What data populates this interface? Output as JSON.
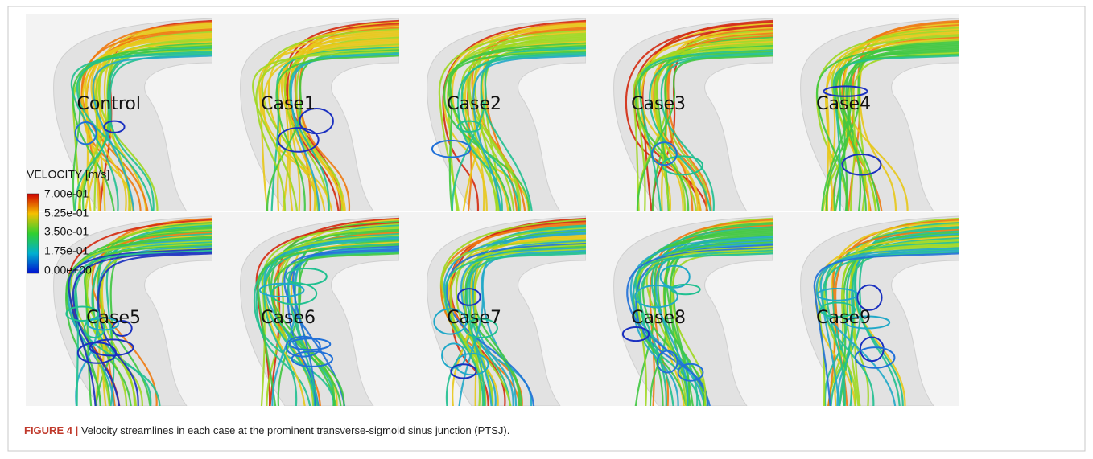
{
  "figure": {
    "panels": [
      "Control",
      "Case1",
      "Case2",
      "Case3",
      "Case4",
      "Case5",
      "Case6",
      "Case7",
      "Case8",
      "Case9"
    ],
    "legend": {
      "title": "VELOCITY [m/s]",
      "labels": [
        "7.00e-01",
        "5.25e-01",
        "3.50e-01",
        "1.75e-01",
        "0.00e+00"
      ]
    },
    "caption": {
      "label": "FIGURE 4 |",
      "text": "Velocity streamlines in each case at the prominent transverse-sigmoid sinus junction (PTSJ)."
    }
  }
}
